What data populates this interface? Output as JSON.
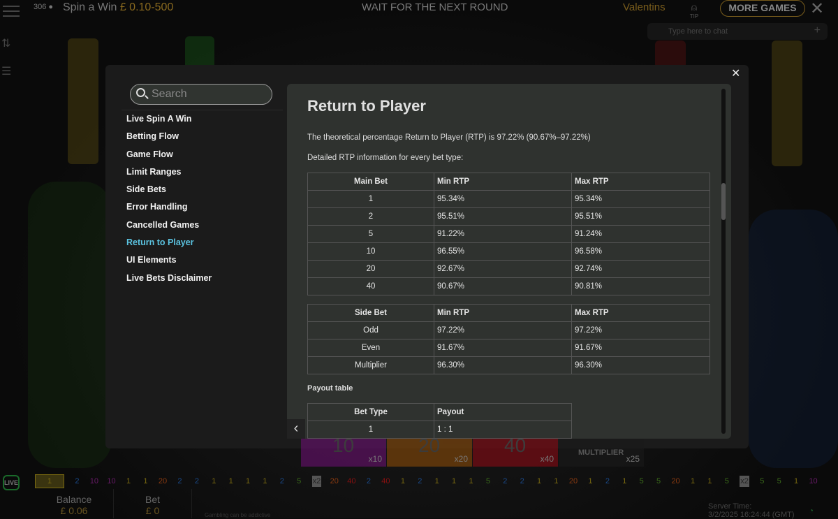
{
  "header": {
    "player_count": "306",
    "game_title": "Spin a Win",
    "limits": "£ 0.10-500",
    "status": "WAIT FOR THE NEXT ROUND",
    "dealer": "Valentins",
    "tip_label": "TIP",
    "more_games": "MORE GAMES",
    "chat_placeholder": "Type here to chat"
  },
  "help": {
    "search_placeholder": "Search",
    "nav": [
      "Live Spin A Win",
      "Betting Flow",
      "Game Flow",
      "Limit Ranges",
      "Side Bets",
      "Error Handling",
      "Cancelled Games",
      "Return to Player",
      "UI Elements",
      "Live Bets Disclaimer"
    ],
    "active_index": 7,
    "title": "Return to Player",
    "intro": "The theoretical percentage Return to Player (RTP) is 97.22% (90.67%–97.22%)",
    "detail": "Detailed RTP information for every bet type:",
    "main_table": {
      "headers": [
        "Main Bet",
        "Min RTP",
        "Max RTP"
      ],
      "rows": [
        [
          "1",
          "95.34%",
          "95.34%"
        ],
        [
          "2",
          "95.51%",
          "95.51%"
        ],
        [
          "5",
          "91.22%",
          "91.24%"
        ],
        [
          "10",
          "96.55%",
          "96.58%"
        ],
        [
          "20",
          "92.67%",
          "92.74%"
        ],
        [
          "40",
          "90.67%",
          "90.81%"
        ]
      ]
    },
    "side_table": {
      "headers": [
        "Side Bet",
        "Min RTP",
        "Max RTP"
      ],
      "rows": [
        [
          "Odd",
          "97.22%",
          "97.22%"
        ],
        [
          "Even",
          "91.67%",
          "91.67%"
        ],
        [
          "Multiplier",
          "96.30%",
          "96.30%"
        ]
      ]
    },
    "payout_heading": "Payout table",
    "payout_table": {
      "headers": [
        "Bet Type",
        "Payout"
      ],
      "rows": [
        [
          "1",
          "1 : 1"
        ]
      ]
    }
  },
  "bet_spots": [
    {
      "number": "10",
      "mult": "x10",
      "color": "#6a1070"
    },
    {
      "number": "20",
      "mult": "x20",
      "color": "#8a4a08"
    },
    {
      "number": "40",
      "mult": "x40",
      "color": "#8a0a14"
    },
    {
      "number": "MULTIPLIER",
      "mult": "x25",
      "color": "#1a1a1a"
    }
  ],
  "results": [
    "1",
    "2",
    "10",
    "10",
    "1",
    "1",
    "20",
    "2",
    "2",
    "1",
    "1",
    "1",
    "1",
    "2",
    "5",
    "x2",
    "20",
    "40",
    "2",
    "40",
    "1",
    "2",
    "1",
    "1",
    "1",
    "5",
    "2",
    "2",
    "1",
    "1",
    "20",
    "1",
    "2",
    "1",
    "5",
    "5",
    "20",
    "1",
    "1",
    "5",
    "x2",
    "5",
    "5",
    "1",
    "10"
  ],
  "result_colors": {
    "1": "#7a6a10",
    "2": "#1a4a8a",
    "5": "#3a6a1a",
    "10": "#6a1a6a",
    "20": "#8a3a10",
    "40": "#8a1010",
    "x2": "#222"
  },
  "footer": {
    "live_badge": "LIVE",
    "balance_label": "Balance",
    "balance": "£ 0.06",
    "bet_label": "Bet",
    "bet": "£ 0",
    "disclaimer": "Gambling can be addictive",
    "server_time_label": "Server Time:",
    "server_time": "3/2/2025 16:24:44 (GMT)"
  }
}
